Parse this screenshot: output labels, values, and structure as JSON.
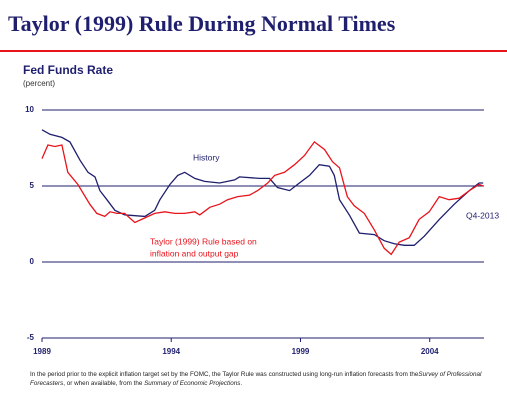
{
  "chart_data": {
    "type": "line",
    "title": "Taylor (1999) Rule During Normal Times",
    "y_axis_title": "Fed Funds Rate",
    "y_axis_unit": "(percent)",
    "xlim": [
      1989,
      2006.1
    ],
    "xticks": [
      1989,
      1994,
      1999,
      2004
    ],
    "ylim": [
      -5,
      10
    ],
    "yticks": [
      10,
      5,
      0,
      -5
    ],
    "grid": true,
    "series": [
      {
        "name": "History",
        "color": "#1f1f6e",
        "x": [
          1989.0,
          1989.31,
          1989.77,
          1990.08,
          1990.47,
          1990.78,
          1991.05,
          1991.24,
          1991.51,
          1991.82,
          1992.2,
          1992.98,
          1993.36,
          1993.56,
          1993.95,
          1994.25,
          1994.52,
          1994.91,
          1995.29,
          1995.87,
          1996.45,
          1996.64,
          1997.42,
          1997.8,
          1998.11,
          1998.58,
          1998.96,
          1999.35,
          1999.73,
          2000.12,
          2000.31,
          2000.51,
          2000.89,
          2001.28,
          2001.86,
          2002.24,
          2002.63,
          2003.02,
          2003.4,
          2003.79,
          2004.37,
          2004.95,
          2005.53,
          2005.91,
          2006.07
        ],
        "values": [
          8.7,
          8.4,
          8.2,
          7.9,
          6.7,
          5.9,
          5.6,
          4.7,
          4.1,
          3.4,
          3.1,
          3.0,
          3.4,
          4.1,
          5.1,
          5.7,
          5.9,
          5.5,
          5.3,
          5.2,
          5.4,
          5.6,
          5.5,
          5.5,
          4.9,
          4.7,
          5.2,
          5.7,
          6.4,
          6.3,
          5.7,
          4.1,
          3.1,
          1.9,
          1.8,
          1.4,
          1.2,
          1.1,
          1.1,
          1.7,
          2.8,
          3.8,
          4.7,
          5.2,
          5.2
        ]
      },
      {
        "name": "Taylor (1999) Rule based on inflation and output gap",
        "color": "#e8141b",
        "x": [
          1989.0,
          1989.23,
          1989.5,
          1989.77,
          1990.0,
          1990.39,
          1990.85,
          1991.12,
          1991.43,
          1991.63,
          1991.9,
          1992.2,
          1992.59,
          1992.98,
          1993.36,
          1993.75,
          1994.14,
          1994.52,
          1994.91,
          1995.1,
          1995.49,
          1995.87,
          1996.18,
          1996.57,
          1997.03,
          1997.34,
          1997.73,
          1998.0,
          1998.38,
          1998.77,
          1999.15,
          1999.54,
          1999.93,
          2000.24,
          2000.51,
          2000.81,
          2001.08,
          2001.47,
          2001.86,
          2002.24,
          2002.51,
          2002.82,
          2003.21,
          2003.59,
          2003.98,
          2004.37,
          2004.75,
          2005.14,
          2005.53,
          2005.91,
          2006.07
        ],
        "values": [
          6.8,
          7.7,
          7.6,
          7.7,
          5.9,
          5.1,
          3.8,
          3.2,
          3.0,
          3.3,
          3.2,
          3.2,
          2.6,
          2.9,
          3.2,
          3.3,
          3.2,
          3.2,
          3.3,
          3.1,
          3.6,
          3.8,
          4.1,
          4.3,
          4.4,
          4.7,
          5.2,
          5.7,
          5.9,
          6.4,
          7.0,
          7.9,
          7.4,
          6.6,
          6.2,
          4.3,
          3.7,
          3.2,
          2.1,
          0.9,
          0.5,
          1.3,
          1.6,
          2.8,
          3.3,
          4.3,
          4.1,
          4.2,
          4.7,
          5.1,
          5.0
        ]
      }
    ],
    "annotations": [
      "History",
      "Taylor (1999) Rule based on",
      "inflation and output gap",
      "Q4-2013"
    ],
    "footnote": [
      "In the period prior to the explicit inflation target set by the FOMC, the Taylor Rule was constructed using long-run inflation forecasts from the",
      "Survey of Professional Forecasters",
      ", or when available, from the ",
      "Summary of Economic Projections",
      "."
    ]
  }
}
